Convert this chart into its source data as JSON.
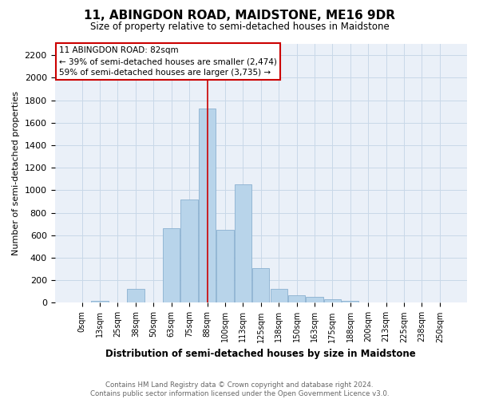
{
  "title": "11, ABINGDON ROAD, MAIDSTONE, ME16 9DR",
  "subtitle": "Size of property relative to semi-detached houses in Maidstone",
  "xlabel": "Distribution of semi-detached houses by size in Maidstone",
  "ylabel": "Number of semi-detached properties",
  "bar_labels": [
    "0sqm",
    "13sqm",
    "25sqm",
    "38sqm",
    "50sqm",
    "63sqm",
    "75sqm",
    "88sqm",
    "100sqm",
    "113sqm",
    "125sqm",
    "138sqm",
    "150sqm",
    "163sqm",
    "175sqm",
    "188sqm",
    "200sqm",
    "213sqm",
    "225sqm",
    "238sqm",
    "250sqm"
  ],
  "bar_values": [
    0,
    15,
    0,
    125,
    0,
    660,
    920,
    1725,
    650,
    1055,
    310,
    125,
    70,
    50,
    35,
    15,
    5,
    5,
    0,
    0,
    0
  ],
  "bar_color": "#b8d4ea",
  "bar_edge_color": "#8ab0d0",
  "highlight_index": 7,
  "vline_color": "#cc0000",
  "annotation_title": "11 ABINGDON ROAD: 82sqm",
  "annotation_line1": "← 39% of semi-detached houses are smaller (2,474)",
  "annotation_line2": "59% of semi-detached houses are larger (3,735) →",
  "annotation_box_color": "#ffffff",
  "annotation_box_edge": "#cc0000",
  "ylim": [
    0,
    2300
  ],
  "yticks": [
    0,
    200,
    400,
    600,
    800,
    1000,
    1200,
    1400,
    1600,
    1800,
    2000,
    2200
  ],
  "footer_line1": "Contains HM Land Registry data © Crown copyright and database right 2024.",
  "footer_line2": "Contains public sector information licensed under the Open Government Licence v3.0.",
  "background_color": "#ffffff",
  "grid_color": "#c8d8e8",
  "plot_bg_color": "#eaf0f8"
}
